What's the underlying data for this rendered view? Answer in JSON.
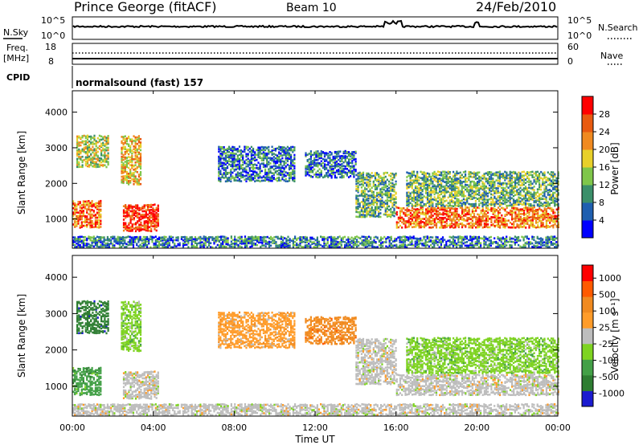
{
  "header": {
    "station": "Prince George (fitACF)",
    "beam": "Beam 10",
    "date": "24/Feb/2010"
  },
  "top_panels": {
    "nsky_label": "N.Sky",
    "nsky_top": "10^5",
    "nsky_bottom": "10^0",
    "nsearch_label": "N.Search",
    "nsearch_top": "10^5",
    "nsearch_bottom": "10^0",
    "freq_label_1": "Freq.",
    "freq_label_2": "[MHz]",
    "freq_top": "18",
    "freq_bottom": "8",
    "nave_label": "Nave",
    "nave_top": "60",
    "nave_bottom": "0",
    "cpid_label": "CPID",
    "cpid_value": "normalsound (fast) 157"
  },
  "chart_data": [
    {
      "type": "heatmap",
      "title": "",
      "ylabel": "Slant Range [km]",
      "xlabel": "",
      "ylim": [
        180,
        4600
      ],
      "yticks": [
        "1000",
        "2000",
        "3000",
        "4000"
      ],
      "colorbar_label": "Power [dB]",
      "colorbar_ticks": [
        "4",
        "8",
        "12",
        "16",
        "20",
        "24",
        "28"
      ],
      "colorbar_colors": [
        "#0000ff",
        "#1f5fb0",
        "#3b8f6a",
        "#7fc64a",
        "#e8d02a",
        "#f08a20",
        "#e85a10",
        "#ff0000"
      ]
    },
    {
      "type": "heatmap",
      "title": "",
      "ylabel": "Slant Range [km]",
      "xlabel": "Time UT",
      "ylim": [
        180,
        4600
      ],
      "yticks": [
        "1000",
        "2000",
        "3000",
        "4000"
      ],
      "xticks": [
        "00:00",
        "04:00",
        "08:00",
        "12:00",
        "16:00",
        "20:00",
        "00:00"
      ],
      "colorbar_label": "Velocity [m s⁻¹]",
      "colorbar_ticks": [
        "1000",
        "500",
        "100",
        "25",
        "-25",
        "-100",
        "-500",
        "-1000"
      ],
      "colorbar_colors": [
        "#1b1bd0",
        "#2e7d32",
        "#43a047",
        "#7ed321",
        "#bdbdbd",
        "#ff9c2a",
        "#f08a20",
        "#ff5a00",
        "#ff0000"
      ]
    }
  ]
}
